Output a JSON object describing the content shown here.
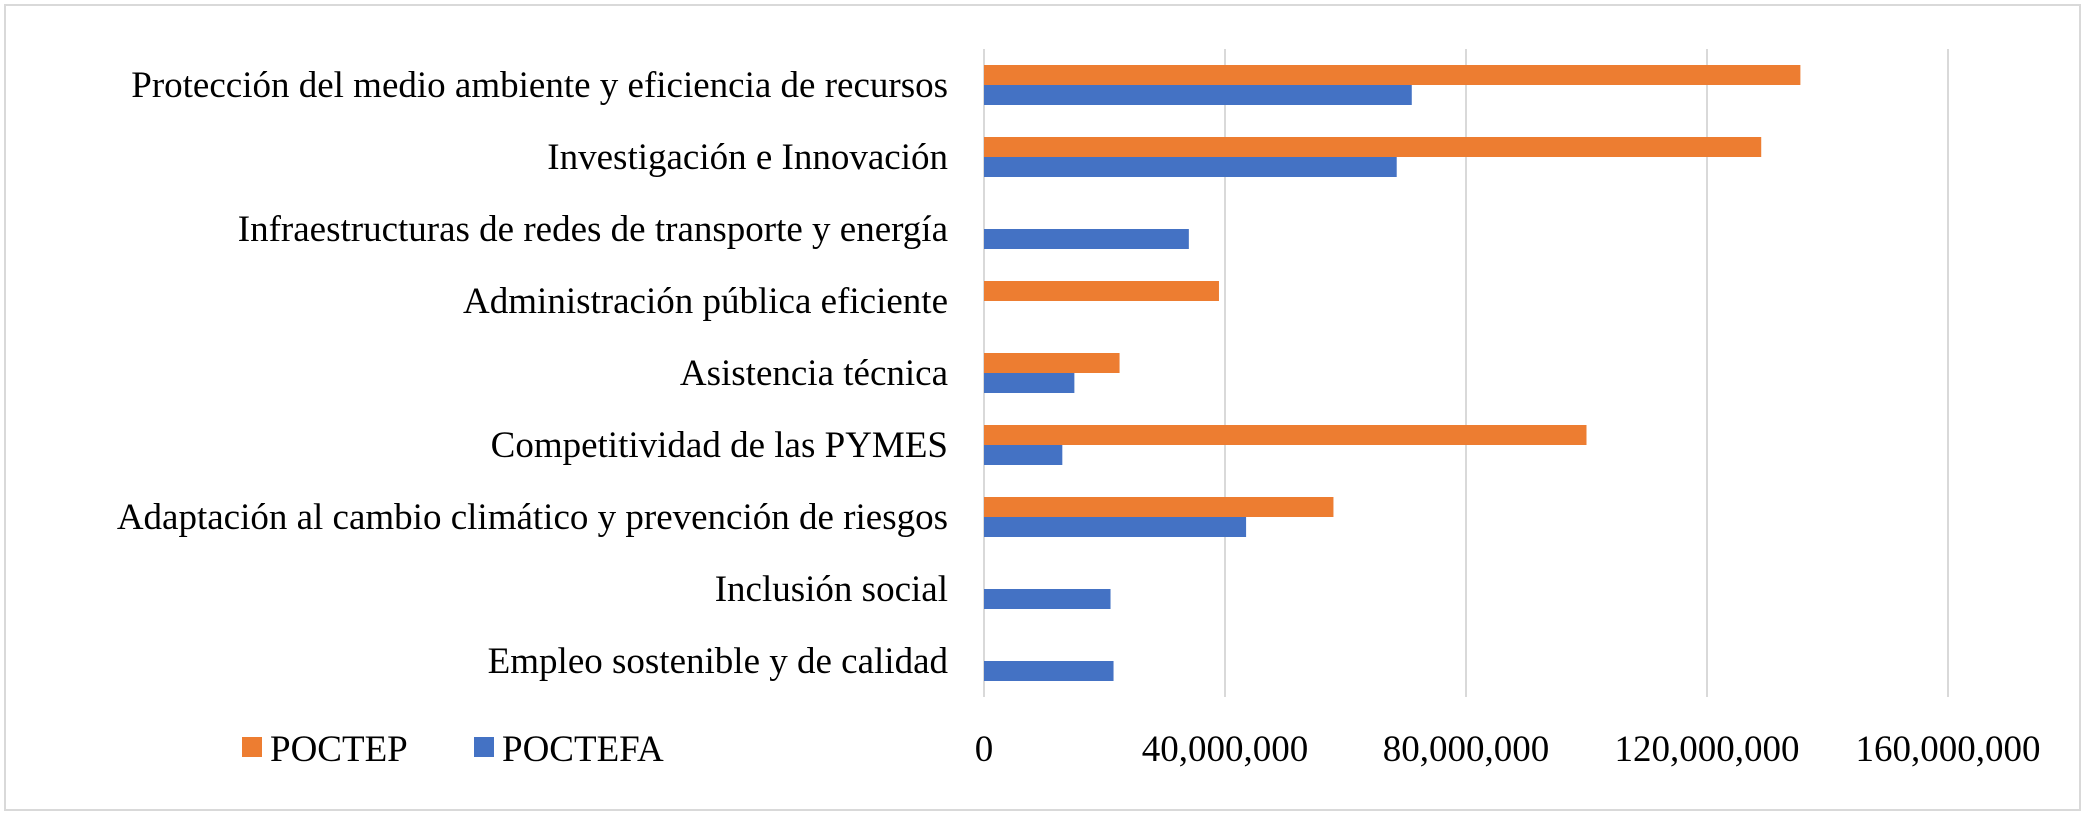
{
  "chart_data": {
    "type": "bar",
    "orientation": "horizontal",
    "title": "",
    "xlabel": "",
    "ylabel": "",
    "xlim": [
      0,
      160000000
    ],
    "x_ticks": [
      0,
      40000000,
      80000000,
      120000000,
      160000000
    ],
    "x_tick_labels": [
      "0",
      "40,000,000",
      "80,000,000",
      "120,000,000",
      "160,000,000"
    ],
    "grid": "vertical",
    "legend_position": "bottom-left",
    "categories": [
      "Protección del medio ambiente y eficiencia de recursos",
      "Investigación e Innovación",
      "Infraestructuras de redes de transporte y energía",
      "Administración pública eficiente",
      "Asistencia técnica",
      "Competitividad de las PYMES",
      "Adaptación al cambio climático y prevención de riesgos",
      "Inclusión social",
      "Empleo sostenible y de calidad"
    ],
    "series": [
      {
        "name": "POCTEP",
        "color": "#ed7d31",
        "values": [
          135500000,
          129000000,
          0,
          39000000,
          22500000,
          100000000,
          58000000,
          0,
          0
        ]
      },
      {
        "name": "POCTEFA",
        "color": "#4472c4",
        "values": [
          71000000,
          68500000,
          34000000,
          0,
          15000000,
          13000000,
          43500000,
          21000000,
          21500000
        ]
      }
    ],
    "gridline_color": "#d9d9d9"
  }
}
